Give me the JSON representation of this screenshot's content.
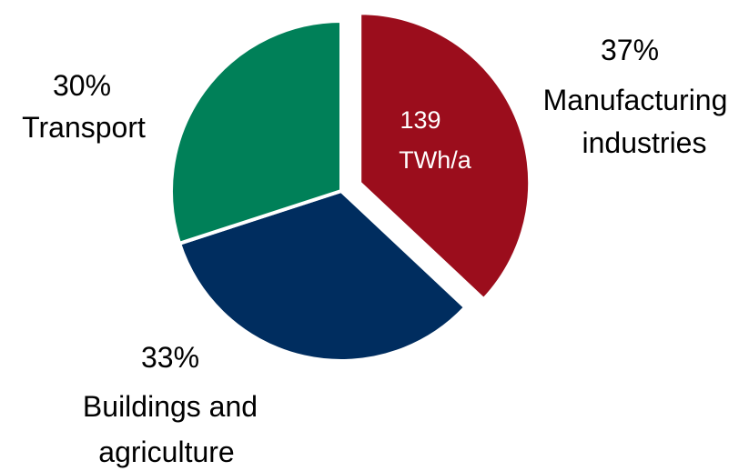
{
  "chart_data": {
    "type": "pie",
    "total_label": [
      "139",
      "TWh/a"
    ],
    "slices": [
      {
        "name": "Manufacturing industries",
        "value": 37,
        "percent_label": "37%",
        "label_lines": [
          "Manufacturing",
          "industries"
        ],
        "color": "#9b0d1c",
        "exploded": true
      },
      {
        "name": "Buildings and agriculture",
        "value": 33,
        "percent_label": "33%",
        "label_lines": [
          "Buildings and",
          "agriculture"
        ],
        "color": "#002d5f",
        "exploded": false
      },
      {
        "name": "Transport",
        "value": 30,
        "percent_label": "30%",
        "label_lines": [
          "Transport"
        ],
        "color": "#008058",
        "exploded": false
      }
    ]
  }
}
